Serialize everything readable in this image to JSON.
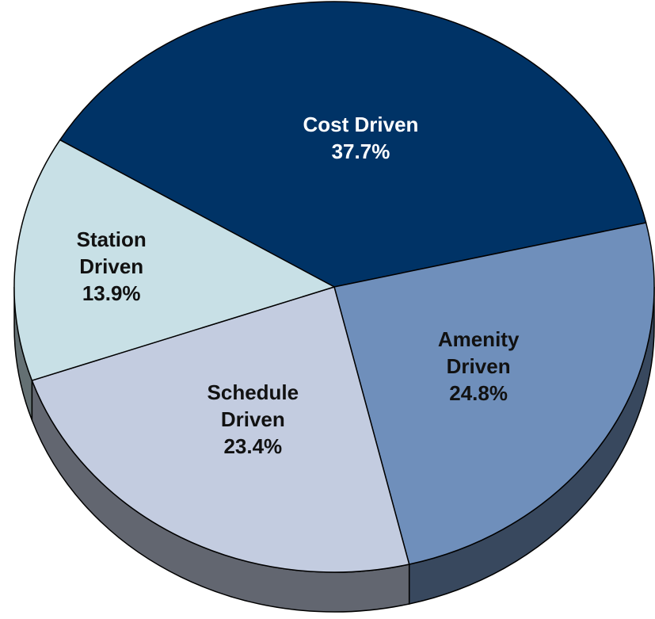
{
  "chart_data": {
    "type": "pie",
    "categories": [
      "Cost Driven",
      "Amenity Driven",
      "Schedule Driven",
      "Station Driven"
    ],
    "values": [
      37.7,
      24.8,
      23.4,
      13.9
    ],
    "value_labels": [
      "37.7%",
      "24.8%",
      "23.4%",
      "13.9%"
    ],
    "colors": [
      "#003366",
      "#6f8fbb",
      "#c3cce0",
      "#c8e0e6"
    ]
  }
}
